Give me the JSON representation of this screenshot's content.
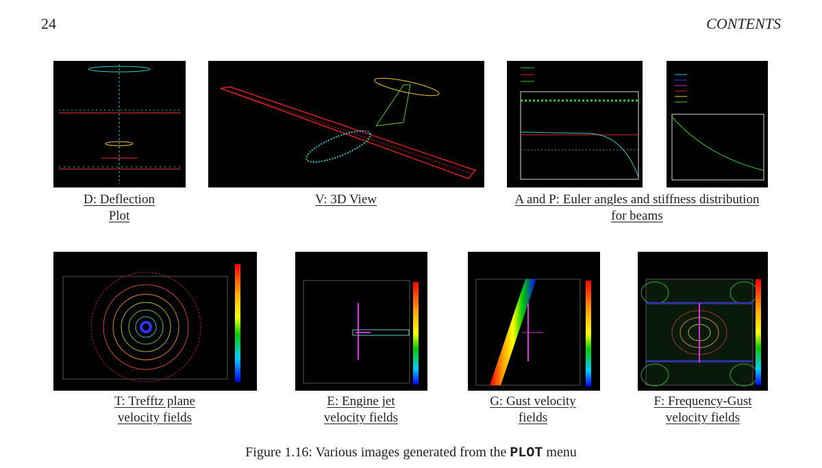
{
  "header": {
    "page_number": "24",
    "running_title": "CONTENTS"
  },
  "figure": {
    "panels": [
      {
        "caption": [
          "D: Deflection",
          "Plot"
        ]
      },
      {
        "caption": [
          "V: 3D View"
        ]
      },
      {
        "caption": [
          "A and P: Euler angles and stiffness distribution",
          "for beams"
        ]
      },
      {
        "caption": [
          "T: Trefftz plane",
          "velocity fields"
        ]
      },
      {
        "caption": [
          "E: Engine jet",
          "velocity fields"
        ]
      },
      {
        "caption": [
          "G: Gust velocity",
          "fields"
        ]
      },
      {
        "caption": [
          "F: Frequency-Gust",
          "velocity fields"
        ]
      }
    ],
    "caption": {
      "label": "Figure 1.16:",
      "text_before": "Various images generated from the",
      "keyword": "PLOT",
      "text_after": "menu"
    }
  }
}
